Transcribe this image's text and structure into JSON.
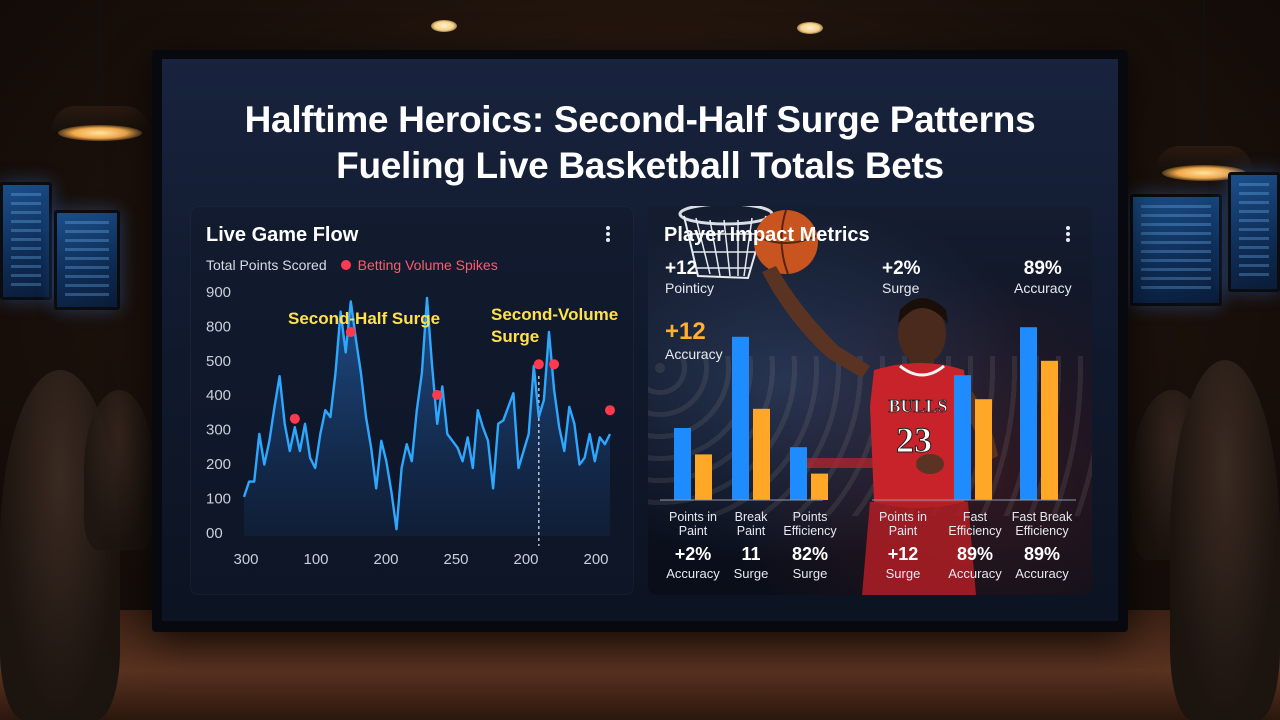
{
  "headline": {
    "line1": "Halftime Heroics: Second-Half Surge Patterns",
    "line2": "Fueling Live Basketball Totals Bets"
  },
  "colors": {
    "line_series": "#2ea8ff",
    "spike_marker": "#ff3a4e",
    "annotation": "#ffe14d",
    "bar_blue": "#1e8bff",
    "bar_orange": "#ffa726"
  },
  "left_panel": {
    "title": "Live Game Flow",
    "menu_icon": "more-vertical-icon",
    "legend": {
      "series_label": "Total Points Scored",
      "marker_label": "Betting Volume Spikes"
    }
  },
  "right_panel": {
    "title": "Player Impact Metrics",
    "menu_icon": "more-vertical-icon",
    "top_stats": [
      {
        "value": "+12",
        "label": "Pointicy"
      },
      {
        "value": "+2%",
        "label": "Surge"
      },
      {
        "value": "89%",
        "label": "Accuracy"
      }
    ],
    "feature_stat": {
      "value": "+12",
      "label": "Accuracy"
    },
    "jersey_text": "BULLS",
    "jersey_number": "23",
    "bottom_stats": [
      {
        "value": "+2%",
        "label": "Accuracy"
      },
      {
        "value": "11",
        "label": "Surge"
      },
      {
        "value": "82%",
        "label": "Surge"
      },
      {
        "value": "+12",
        "label": "Surge"
      },
      {
        "value": "89%",
        "label": "Accuracy"
      },
      {
        "value": "89%",
        "label": "Accuracy"
      }
    ]
  },
  "chart_data": [
    {
      "type": "line",
      "title": "Live Game Flow",
      "y_ticks": [
        "900",
        "800",
        "500",
        "400",
        "300",
        "200",
        "100",
        "00"
      ],
      "x_ticks": [
        "300",
        "100",
        "200",
        "250",
        "200",
        "200"
      ],
      "grid": false,
      "legend_position": "top-left",
      "series": [
        {
          "name": "Total Points Scored",
          "values": [
            115,
            160,
            160,
            300,
            210,
            280,
            380,
            470,
            330,
            250,
            320,
            250,
            330,
            230,
            200,
            300,
            370,
            350,
            480,
            660,
            540,
            690,
            580,
            480,
            350,
            260,
            140,
            280,
            220,
            130,
            20,
            200,
            270,
            220,
            370,
            480,
            700,
            500,
            330,
            440,
            300,
            280,
            260,
            220,
            290,
            200,
            370,
            320,
            280,
            140,
            330,
            340,
            380,
            420,
            200,
            250,
            300,
            500,
            350,
            400,
            600,
            430,
            320,
            250,
            380,
            330,
            210,
            230,
            300,
            220,
            290,
            270,
            300
          ]
        }
      ],
      "markers": {
        "name": "Betting Volume Spikes",
        "points": [
          {
            "index": 10,
            "value": 345
          },
          {
            "index": 21,
            "value": 600
          },
          {
            "index": 38,
            "value": 415
          },
          {
            "index": 58,
            "value": 505
          },
          {
            "index": 61,
            "value": 505
          },
          {
            "index": 72,
            "value": 370
          }
        ]
      },
      "annotations": [
        {
          "text": "Second-Half Surge"
        },
        {
          "text": "Second-Volume Surge"
        }
      ],
      "reference_line_at_index": 58
    },
    {
      "type": "bar",
      "categories": [
        "Points in Paint",
        "Break Paint",
        "Points Efficiency",
        "Points in Paint",
        "Fast Efficiency",
        "Fast Break Efficiency"
      ],
      "series": [
        {
          "values": [
            30,
            68,
            22,
            0,
            52,
            72
          ]
        },
        {
          "values": [
            19,
            38,
            11,
            0,
            42,
            58
          ]
        }
      ]
    }
  ]
}
